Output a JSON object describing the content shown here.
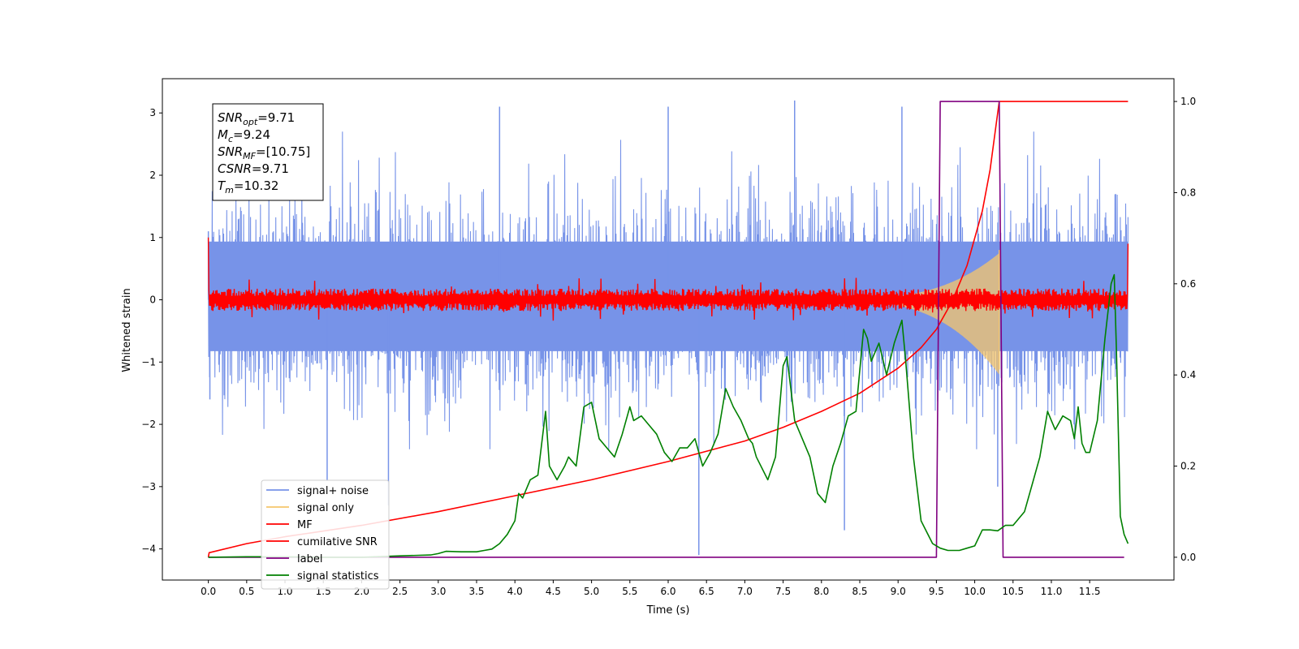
{
  "chart_data": {
    "type": "line",
    "xlabel": "Time (s)",
    "ylabel": "Whitened strain",
    "xlim": [
      -0.6,
      12.6
    ],
    "ylim_left": [
      -4.5,
      3.55
    ],
    "ylim_right": [
      -0.05,
      1.05
    ],
    "x_ticks": [
      "0.0",
      "0.5",
      "1.0",
      "1.5",
      "2.0",
      "2.5",
      "3.0",
      "3.5",
      "4.0",
      "4.5",
      "5.0",
      "5.5",
      "6.0",
      "6.5",
      "7.0",
      "7.5",
      "8.0",
      "8.5",
      "9.0",
      "9.5",
      "10.0",
      "10.5",
      "11.0",
      "11.5"
    ],
    "y_ticks_left": [
      "3",
      "2",
      "1",
      "0",
      "−1",
      "−2",
      "−3",
      "−4"
    ],
    "y_ticks_right": [
      "1.0",
      "0.8",
      "0.6",
      "0.4",
      "0.2",
      "0.0"
    ],
    "annotation": {
      "lines": [
        {
          "sym": "SNR",
          "sub": "opt",
          "text": "=9.71"
        },
        {
          "sym": "M",
          "sub": "c",
          "text": "=9.24"
        },
        {
          "sym": "SNR",
          "sub": "MF",
          "text": "=[10.75]"
        },
        {
          "sym": "CSNR",
          "sub": "",
          "text": "=9.71"
        },
        {
          "sym": "T",
          "sub": "m",
          "text": "=10.32"
        }
      ]
    },
    "legend": {
      "placement": "lower-left",
      "entries": [
        {
          "label": "signal+ noise",
          "color": "#7793e8"
        },
        {
          "label": "signal only",
          "color": "#f5c66b"
        },
        {
          "label": "MF",
          "color": "#ff0000"
        },
        {
          "label": "cumilative SNR",
          "color": "#ff0000"
        },
        {
          "label": "label",
          "color": "#800080"
        },
        {
          "label": "signal statistics",
          "color": "#008000"
        }
      ]
    },
    "series": [
      {
        "name": "signal+ noise",
        "axis": "left",
        "color": "#7793e8",
        "x_range": [
          0,
          12.0
        ],
        "envelope_typical": [
          -1.5,
          1.7
        ],
        "extremes": [
          {
            "x": 0.0,
            "y": 1.1
          },
          {
            "x": 0.02,
            "y": -1.6
          },
          {
            "x": 1.55,
            "y": -2.9
          },
          {
            "x": 2.35,
            "y": -3.3
          },
          {
            "x": 3.8,
            "y": 3.1
          },
          {
            "x": 6.0,
            "y": 3.1
          },
          {
            "x": 6.4,
            "y": -4.1
          },
          {
            "x": 7.65,
            "y": 3.2
          },
          {
            "x": 8.3,
            "y": -3.7
          },
          {
            "x": 9.05,
            "y": 3.1
          },
          {
            "x": 10.3,
            "y": -3.0
          }
        ]
      },
      {
        "name": "signal only",
        "axis": "left",
        "color": "#f5c66b",
        "chirp_start": 8.2,
        "chirp_end": 10.32,
        "peak_amplitude": 0.7
      },
      {
        "name": "MF",
        "axis": "left",
        "color": "#ff0000",
        "x_range": [
          0,
          12.0
        ],
        "start_value": 1.0,
        "end_value": 0.9,
        "band": [
          -0.15,
          0.15
        ]
      },
      {
        "name": "cumilative SNR",
        "axis": "right",
        "color": "#ff0000",
        "points": [
          [
            0.0,
            0.0
          ],
          [
            0.01,
            0.01
          ],
          [
            0.5,
            0.03
          ],
          [
            1.0,
            0.045
          ],
          [
            2.0,
            0.07
          ],
          [
            3.0,
            0.1
          ],
          [
            4.0,
            0.135
          ],
          [
            5.0,
            0.17
          ],
          [
            6.0,
            0.21
          ],
          [
            7.0,
            0.255
          ],
          [
            7.5,
            0.285
          ],
          [
            8.0,
            0.32
          ],
          [
            8.5,
            0.36
          ],
          [
            9.0,
            0.415
          ],
          [
            9.3,
            0.46
          ],
          [
            9.5,
            0.5
          ],
          [
            9.7,
            0.56
          ],
          [
            9.9,
            0.64
          ],
          [
            10.1,
            0.76
          ],
          [
            10.2,
            0.85
          ],
          [
            10.28,
            0.95
          ],
          [
            10.32,
            1.0
          ],
          [
            12.0,
            1.0
          ]
        ]
      },
      {
        "name": "label",
        "axis": "right",
        "color": "#800080",
        "points": [
          [
            0.0,
            0.0
          ],
          [
            9.5,
            0.0
          ],
          [
            9.55,
            1.0
          ],
          [
            10.32,
            1.0
          ],
          [
            10.37,
            0.0
          ],
          [
            11.95,
            0.0
          ]
        ]
      },
      {
        "name": "signal statistics",
        "axis": "right",
        "color": "#008000",
        "points": [
          [
            0.0,
            0.0
          ],
          [
            0.5,
            0.001
          ],
          [
            1.0,
            0.001
          ],
          [
            1.5,
            0.0
          ],
          [
            2.0,
            0.0
          ],
          [
            2.5,
            0.003
          ],
          [
            2.9,
            0.005
          ],
          [
            3.0,
            0.008
          ],
          [
            3.1,
            0.013
          ],
          [
            3.3,
            0.012
          ],
          [
            3.5,
            0.012
          ],
          [
            3.6,
            0.015
          ],
          [
            3.7,
            0.018
          ],
          [
            3.8,
            0.03
          ],
          [
            3.9,
            0.05
          ],
          [
            4.0,
            0.08
          ],
          [
            4.05,
            0.14
          ],
          [
            4.1,
            0.13
          ],
          [
            4.2,
            0.17
          ],
          [
            4.3,
            0.18
          ],
          [
            4.4,
            0.32
          ],
          [
            4.45,
            0.2
          ],
          [
            4.55,
            0.17
          ],
          [
            4.65,
            0.2
          ],
          [
            4.7,
            0.22
          ],
          [
            4.8,
            0.2
          ],
          [
            4.9,
            0.33
          ],
          [
            5.0,
            0.34
          ],
          [
            5.1,
            0.26
          ],
          [
            5.2,
            0.24
          ],
          [
            5.3,
            0.22
          ],
          [
            5.4,
            0.27
          ],
          [
            5.5,
            0.33
          ],
          [
            5.55,
            0.3
          ],
          [
            5.65,
            0.31
          ],
          [
            5.75,
            0.29
          ],
          [
            5.85,
            0.27
          ],
          [
            5.95,
            0.23
          ],
          [
            6.05,
            0.21
          ],
          [
            6.15,
            0.24
          ],
          [
            6.25,
            0.24
          ],
          [
            6.35,
            0.26
          ],
          [
            6.45,
            0.2
          ],
          [
            6.55,
            0.23
          ],
          [
            6.65,
            0.27
          ],
          [
            6.75,
            0.37
          ],
          [
            6.85,
            0.33
          ],
          [
            6.95,
            0.3
          ],
          [
            7.05,
            0.26
          ],
          [
            7.1,
            0.25
          ],
          [
            7.15,
            0.22
          ],
          [
            7.3,
            0.17
          ],
          [
            7.4,
            0.22
          ],
          [
            7.5,
            0.42
          ],
          [
            7.55,
            0.44
          ],
          [
            7.65,
            0.3
          ],
          [
            7.75,
            0.26
          ],
          [
            7.85,
            0.22
          ],
          [
            7.95,
            0.14
          ],
          [
            8.05,
            0.12
          ],
          [
            8.15,
            0.2
          ],
          [
            8.25,
            0.25
          ],
          [
            8.35,
            0.31
          ],
          [
            8.45,
            0.32
          ],
          [
            8.55,
            0.5
          ],
          [
            8.6,
            0.48
          ],
          [
            8.65,
            0.43
          ],
          [
            8.75,
            0.47
          ],
          [
            8.85,
            0.4
          ],
          [
            8.95,
            0.47
          ],
          [
            9.05,
            0.52
          ],
          [
            9.1,
            0.43
          ],
          [
            9.2,
            0.22
          ],
          [
            9.3,
            0.08
          ],
          [
            9.45,
            0.03
          ],
          [
            9.55,
            0.02
          ],
          [
            9.65,
            0.015
          ],
          [
            9.8,
            0.015
          ],
          [
            9.9,
            0.02
          ],
          [
            10.0,
            0.025
          ],
          [
            10.1,
            0.06
          ],
          [
            10.2,
            0.06
          ],
          [
            10.3,
            0.058
          ],
          [
            10.4,
            0.07
          ],
          [
            10.5,
            0.07
          ],
          [
            10.55,
            0.08
          ],
          [
            10.65,
            0.1
          ],
          [
            10.75,
            0.16
          ],
          [
            10.85,
            0.22
          ],
          [
            10.95,
            0.32
          ],
          [
            11.0,
            0.3
          ],
          [
            11.05,
            0.28
          ],
          [
            11.15,
            0.31
          ],
          [
            11.25,
            0.3
          ],
          [
            11.3,
            0.26
          ],
          [
            11.35,
            0.33
          ],
          [
            11.4,
            0.25
          ],
          [
            11.45,
            0.23
          ],
          [
            11.5,
            0.23
          ],
          [
            11.6,
            0.3
          ],
          [
            11.7,
            0.48
          ],
          [
            11.78,
            0.6
          ],
          [
            11.82,
            0.62
          ],
          [
            11.85,
            0.45
          ],
          [
            11.9,
            0.09
          ],
          [
            11.95,
            0.05
          ],
          [
            12.0,
            0.03
          ]
        ]
      }
    ]
  }
}
